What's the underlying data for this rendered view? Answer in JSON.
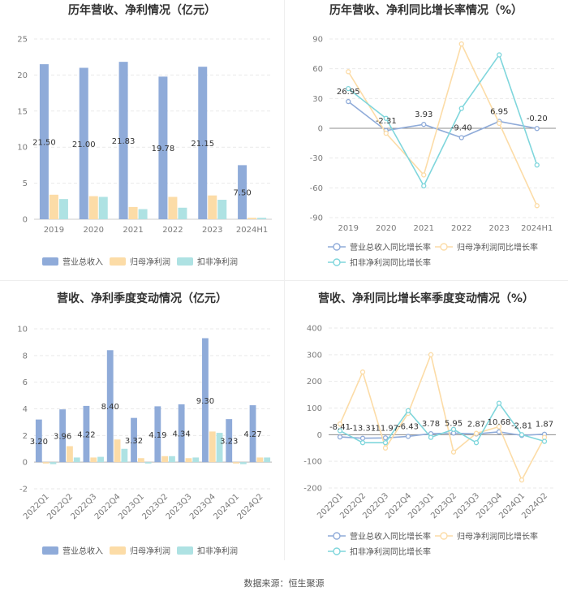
{
  "colors": {
    "revenue": "#8fabd9",
    "net_profit": "#fcdca7",
    "deducted_profit": "#aee2e3",
    "revenue_line": "#8fabd9",
    "net_line": "#fcdca7",
    "deducted_line": "#7fd6dc",
    "grid": "#e9e9e9",
    "zero_line": "#8c8c8c"
  },
  "source": "数据来源：恒生聚源",
  "chart_data": [
    {
      "type": "bar",
      "title": "历年营收、净利情况（亿元）",
      "categories": [
        "2019",
        "2020",
        "2021",
        "2022",
        "2023",
        "2024H1"
      ],
      "ylim": [
        0,
        25
      ],
      "yticks": [
        0,
        5,
        10,
        15,
        20,
        25
      ],
      "labeled_series": 0,
      "series": [
        {
          "name": "营业总收入",
          "values": [
            21.5,
            21.0,
            21.83,
            19.78,
            21.15,
            7.5
          ],
          "labels": [
            "21.50",
            "21.00",
            "21.83",
            "19.78",
            "21.15",
            "7.50"
          ]
        },
        {
          "name": "归母净利润",
          "values": [
            3.4,
            3.2,
            1.7,
            3.1,
            3.3,
            0.2
          ]
        },
        {
          "name": "扣非净利润",
          "values": [
            2.8,
            3.1,
            1.4,
            1.6,
            2.7,
            0.2
          ]
        }
      ]
    },
    {
      "type": "line",
      "title": "历年营收、净利同比增长率情况（%）",
      "categories": [
        "2019",
        "2020",
        "2021",
        "2022",
        "2023",
        "2024H1"
      ],
      "ylim": [
        -90,
        90
      ],
      "yticks": [
        -90,
        -60,
        -30,
        0,
        30,
        60,
        90
      ],
      "labeled_series": 0,
      "series": [
        {
          "name": "营业总收入同比增长率",
          "values": [
            26.95,
            -2.31,
            3.93,
            -9.4,
            6.95,
            -0.2
          ],
          "labels": [
            "26.95",
            "-2.31",
            "3.93",
            "-9.40",
            "6.95",
            "-0.20"
          ]
        },
        {
          "name": "归母净利润同比增长率",
          "values": [
            57,
            -5,
            -47,
            85,
            5,
            -78
          ]
        },
        {
          "name": "扣非净利润同比增长率",
          "values": [
            40,
            10,
            -58,
            20,
            74,
            -37
          ]
        }
      ]
    },
    {
      "type": "bar",
      "title": "营收、净利季度变动情况（亿元）",
      "categories": [
        "2022Q1",
        "2022Q2",
        "2022Q3",
        "2022Q4",
        "2023Q1",
        "2023Q2",
        "2023Q3",
        "2023Q4",
        "2024Q1",
        "2024Q2"
      ],
      "ylim": [
        -2,
        10
      ],
      "yticks": [
        -2,
        0,
        2,
        4,
        6,
        8,
        10
      ],
      "labeled_series": 0,
      "series": [
        {
          "name": "营业总收入",
          "values": [
            3.2,
            3.96,
            4.22,
            8.4,
            3.32,
            4.19,
            4.34,
            9.3,
            3.23,
            4.27
          ],
          "labels": [
            "3.20",
            "3.96",
            "4.22",
            "8.40",
            "3.32",
            "4.19",
            "4.34",
            "9.30",
            "3.23",
            "4.27"
          ]
        },
        {
          "name": "归母净利润",
          "values": [
            -0.1,
            1.2,
            0.35,
            1.7,
            0.3,
            0.45,
            0.3,
            2.3,
            -0.1,
            0.35
          ]
        },
        {
          "name": "扣非净利润",
          "values": [
            -0.15,
            0.35,
            0.4,
            1.0,
            -0.1,
            0.45,
            0.35,
            2.2,
            -0.15,
            0.35
          ]
        }
      ]
    },
    {
      "type": "line",
      "title": "营收、净利同比增长率季度变动情况（%）",
      "categories": [
        "2022Q1",
        "2022Q2",
        "2022Q3",
        "2022Q4",
        "2023Q1",
        "2023Q2",
        "2023Q3",
        "2023Q4",
        "2024Q1",
        "2024Q2"
      ],
      "ylim": [
        -200,
        400
      ],
      "yticks": [
        -200,
        -100,
        0,
        100,
        200,
        300,
        400
      ],
      "labeled_series": 0,
      "series": [
        {
          "name": "营业总收入同比增长率",
          "values": [
            -8.41,
            -13.31,
            -11.97,
            -6.43,
            3.78,
            5.95,
            2.87,
            10.68,
            -2.81,
            1.87
          ],
          "labels": [
            "-8.41",
            "-13.31",
            "-11.97",
            "-6.43",
            "3.78",
            "5.95",
            "2.87",
            "10.68",
            "-2.81",
            "1.87"
          ]
        },
        {
          "name": "归母净利润同比增长率",
          "values": [
            40,
            235,
            -50,
            80,
            300,
            -65,
            5,
            30,
            -170,
            -10
          ]
        },
        {
          "name": "扣非净利润同比增长率",
          "values": [
            15,
            -30,
            -30,
            90,
            -10,
            20,
            -30,
            118,
            0,
            -25
          ]
        }
      ]
    }
  ]
}
